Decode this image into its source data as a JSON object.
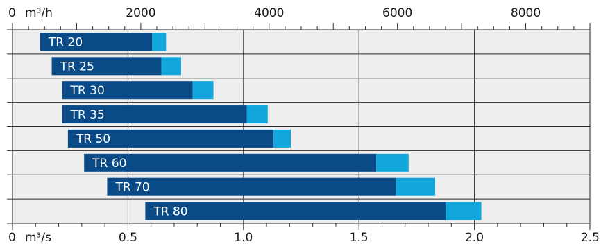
{
  "chart_data": {
    "type": "bar",
    "orientation": "horizontal",
    "stacked": true,
    "grid": true,
    "categories": [
      "TR 20",
      "TR 25",
      "TR 30",
      "TR 35",
      "TR 50",
      "TR 60",
      "TR 70",
      "TR 80"
    ],
    "series": [
      {
        "start": [
          0.12,
          0.17,
          0.215,
          0.215,
          0.24,
          0.31,
          0.41,
          0.575
        ],
        "end": [
          0.605,
          0.645,
          0.78,
          1.015,
          1.13,
          1.575,
          1.66,
          1.875
        ]
      },
      {
        "start": [
          0.605,
          0.645,
          0.78,
          1.015,
          1.13,
          1.575,
          1.66,
          1.875
        ],
        "end": [
          0.665,
          0.73,
          0.87,
          1.105,
          1.205,
          1.715,
          1.83,
          2.03
        ]
      }
    ],
    "x_bottom": {
      "unit": "m³/s",
      "range": [
        0,
        2.5
      ],
      "ticks": [
        {
          "v": 0,
          "label": "0"
        },
        {
          "v": 0.5,
          "label": "0.5"
        },
        {
          "v": 1.0,
          "label": "1.0"
        },
        {
          "v": 1.5,
          "label": "1.5"
        },
        {
          "v": 2.0,
          "label": "2.0"
        },
        {
          "v": 2.5,
          "label": "2.5"
        }
      ]
    },
    "x_top": {
      "unit": "m³/h",
      "range": [
        0,
        9000
      ],
      "ticks": [
        {
          "v": 0,
          "label": "0"
        },
        {
          "v": 2000,
          "label": "2000"
        },
        {
          "v": 4000,
          "label": "4000"
        },
        {
          "v": 6000,
          "label": "6000"
        },
        {
          "v": 8000,
          "label": "8000"
        }
      ]
    }
  },
  "colors": {
    "primary": "#0a4a86",
    "extension": "#11a6dc",
    "plot_bg": "#eeeeee",
    "grid": "#2a2a2a"
  }
}
